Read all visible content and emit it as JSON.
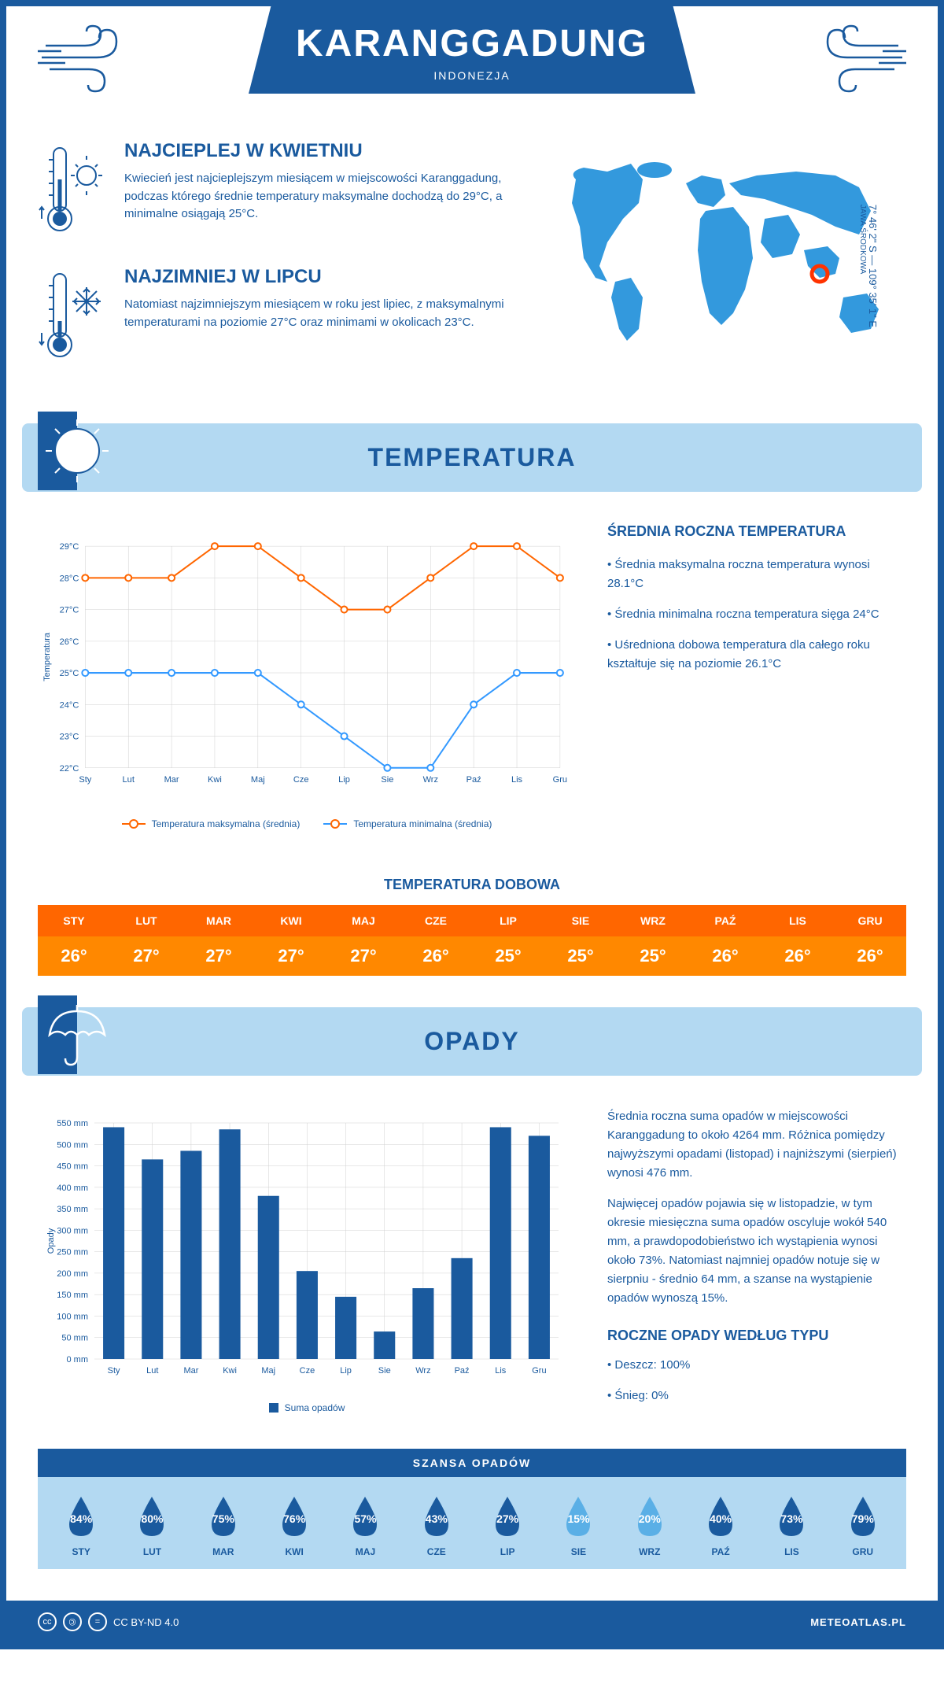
{
  "header": {
    "title": "KARANGGADUNG",
    "subtitle": "INDONEZJA"
  },
  "coords": {
    "main": "7° 46' 2\" S — 109° 35' 1\" E",
    "sub": "JAWA ŚRODKOWA"
  },
  "warmest": {
    "title": "NAJCIEPLEJ W KWIETNIU",
    "text": "Kwiecień jest najcieplejszym miesiącem w miejscowości Karanggadung, podczas którego średnie temperatury maksymalne dochodzą do 29°C, a minimalne osiągają 25°C."
  },
  "coldest": {
    "title": "NAJZIMNIEJ W LIPCU",
    "text": "Natomiast najzimniejszym miesiącem w roku jest lipiec, z maksymalnymi temperaturami na poziomie 27°C oraz minimami w okolicach 23°C."
  },
  "temp_section": {
    "title": "TEMPERATURA",
    "info_title": "ŚREDNIA ROCZNA TEMPERATURA",
    "bullets": [
      "• Średnia maksymalna roczna temperatura wynosi 28.1°C",
      "• Średnia minimalna roczna temperatura sięga 24°C",
      "• Uśredniona dobowa temperatura dla całego roku kształtuje się na poziomie 26.1°C"
    ],
    "chart": {
      "months": [
        "Sty",
        "Lut",
        "Mar",
        "Kwi",
        "Maj",
        "Cze",
        "Lip",
        "Sie",
        "Wrz",
        "Paź",
        "Lis",
        "Gru"
      ],
      "max_temp": [
        28,
        28,
        28,
        29,
        29,
        28,
        27,
        27,
        28,
        29,
        29,
        28
      ],
      "min_temp": [
        25,
        25,
        25,
        25,
        25,
        24,
        23,
        22,
        22,
        24,
        25,
        25
      ],
      "ylim": [
        22,
        29
      ],
      "ytick_step": 1,
      "y_axis_label": "Temperatura",
      "max_color": "#ff6600",
      "min_color": "#3399ff",
      "grid_color": "#d0d0d0",
      "legend_max": "Temperatura maksymalna (średnia)",
      "legend_min": "Temperatura minimalna (średnia)"
    },
    "daily_title": "TEMPERATURA DOBOWA",
    "daily": {
      "months": [
        "STY",
        "LUT",
        "MAR",
        "KWI",
        "MAJ",
        "CZE",
        "LIP",
        "SIE",
        "WRZ",
        "PAŹ",
        "LIS",
        "GRU"
      ],
      "values": [
        "26°",
        "27°",
        "27°",
        "27°",
        "27°",
        "26°",
        "25°",
        "25°",
        "25°",
        "26°",
        "26°",
        "26°"
      ],
      "header_bg": "#ff6600",
      "value_bg": "#ff8800"
    }
  },
  "precip_section": {
    "title": "OPADY",
    "text1": "Średnia roczna suma opadów w miejscowości Karanggadung to około 4264 mm. Różnica pomiędzy najwyższymi opadami (listopad) i najniższymi (sierpień) wynosi 476 mm.",
    "text2": "Najwięcej opadów pojawia się w listopadzie, w tym okresie miesięczna suma opadów oscyluje wokół 540 mm, a prawdopodobieństwo ich wystąpienia wynosi około 73%. Natomiast najmniej opadów notuje się w sierpniu - średnio 64 mm, a szanse na wystąpienie opadów wynoszą 15%.",
    "type_title": "ROCZNE OPADY WEDŁUG TYPU",
    "type_bullets": [
      "• Deszcz: 100%",
      "• Śnieg: 0%"
    ],
    "chart": {
      "months": [
        "Sty",
        "Lut",
        "Mar",
        "Kwi",
        "Maj",
        "Cze",
        "Lip",
        "Sie",
        "Wrz",
        "Paź",
        "Lis",
        "Gru"
      ],
      "values": [
        540,
        465,
        485,
        535,
        380,
        205,
        145,
        64,
        165,
        235,
        540,
        520
      ],
      "ylim": [
        0,
        550
      ],
      "ytick_step": 50,
      "y_axis_label": "Opady",
      "bar_color": "#1a5a9e",
      "grid_color": "#d0d0d0",
      "legend": "Suma opadów"
    },
    "chance": {
      "title": "SZANSA OPADÓW",
      "months": [
        "STY",
        "LUT",
        "MAR",
        "KWI",
        "MAJ",
        "CZE",
        "LIP",
        "SIE",
        "WRZ",
        "PAŹ",
        "LIS",
        "GRU"
      ],
      "values": [
        "84%",
        "80%",
        "75%",
        "76%",
        "57%",
        "43%",
        "27%",
        "15%",
        "20%",
        "40%",
        "73%",
        "79%"
      ],
      "colors": [
        "#1a5a9e",
        "#1a5a9e",
        "#1a5a9e",
        "#1a5a9e",
        "#1a5a9e",
        "#1a5a9e",
        "#1a5a9e",
        "#5aafe6",
        "#5aafe6",
        "#1a5a9e",
        "#1a5a9e",
        "#1a5a9e"
      ]
    }
  },
  "footer": {
    "license": "CC BY-ND 4.0",
    "site": "METEOATLAS.PL"
  },
  "colors": {
    "primary": "#1a5a9e",
    "light_blue": "#b3d9f2",
    "map_blue": "#3399dd",
    "marker_red": "#ff3300"
  }
}
